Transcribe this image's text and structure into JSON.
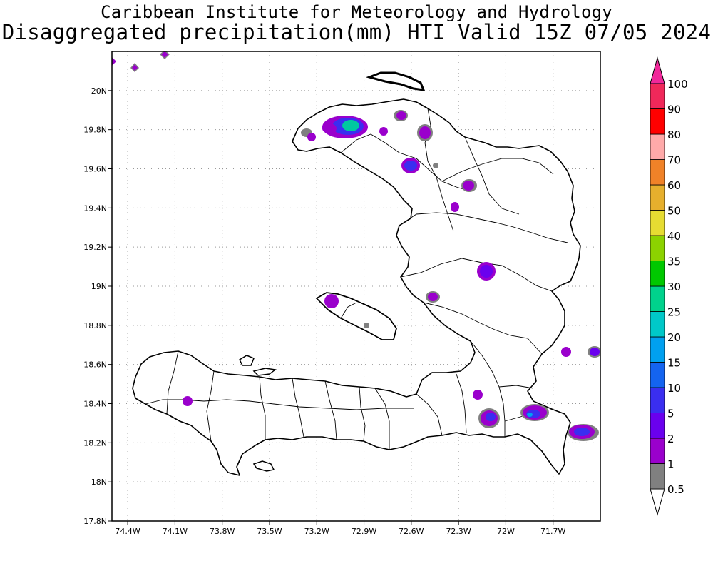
{
  "title": {
    "line1": "Caribbean Institute for Meteorology and Hydrology",
    "line2": "Disaggregated precipitation(mm) HTI Valid 15Z 07/05 2024"
  },
  "map": {
    "lat_labels": [
      "20N",
      "19.8N",
      "19.6N",
      "19.4N",
      "19.2N",
      "19N",
      "18.8N",
      "18.6N",
      "18.4N",
      "18.2N",
      "18N",
      "17.8N"
    ],
    "lat_values": [
      20.0,
      19.8,
      19.6,
      19.4,
      19.2,
      19.0,
      18.8,
      18.6,
      18.4,
      18.2,
      18.0,
      17.8
    ],
    "lon_labels": [
      "74.4W",
      "74.1W",
      "73.8W",
      "73.5W",
      "73.2W",
      "72.9W",
      "72.6W",
      "72.3W",
      "72W",
      "71.7W"
    ],
    "lon_values": [
      -74.4,
      -74.1,
      -73.8,
      -73.5,
      -73.2,
      -72.9,
      -72.6,
      -72.3,
      -72.0,
      -71.7
    ],
    "extent": {
      "lon_min": -74.5,
      "lon_max": -71.4,
      "lat_min": 17.8,
      "lat_max": 20.2
    },
    "grid": true,
    "land_color": "#ffffff",
    "coast_color": "#000000"
  },
  "legend": {
    "levels": [
      "0.5",
      "1",
      "2",
      "5",
      "10",
      "15",
      "20",
      "25",
      "30",
      "35",
      "40",
      "50",
      "60",
      "70",
      "80",
      "90",
      "100"
    ],
    "colors": [
      "#808080",
      "#9a00cc",
      "#6a00ee",
      "#3a2ef0",
      "#1464f0",
      "#00a0f0",
      "#00c8c8",
      "#00d28c",
      "#00c800",
      "#8cd200",
      "#e6dc32",
      "#e6af2d",
      "#f08228",
      "#ffaaaa",
      "#ff0000",
      "#f0285a"
    ],
    "top_arrow_color": "#f0289a",
    "bottom_arrow_color": "#ffffff"
  }
}
